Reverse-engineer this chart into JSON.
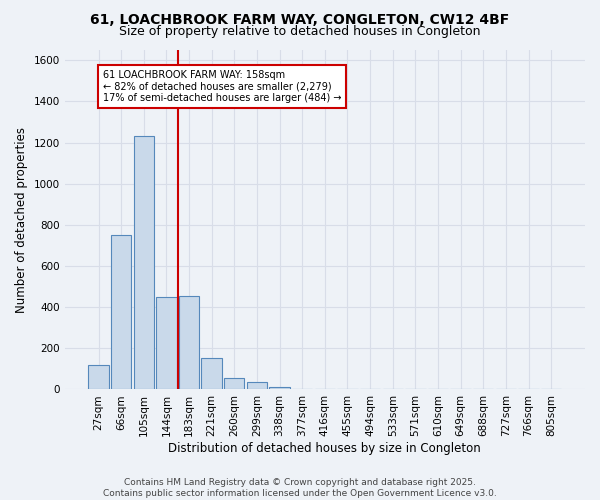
{
  "title1": "61, LOACHBROOK FARM WAY, CONGLETON, CW12 4BF",
  "title2": "Size of property relative to detached houses in Congleton",
  "xlabel": "Distribution of detached houses by size in Congleton",
  "ylabel": "Number of detached properties",
  "bar_labels": [
    "27sqm",
    "66sqm",
    "105sqm",
    "144sqm",
    "183sqm",
    "221sqm",
    "260sqm",
    "299sqm",
    "338sqm",
    "377sqm",
    "416sqm",
    "455sqm",
    "494sqm",
    "533sqm",
    "571sqm",
    "610sqm",
    "649sqm",
    "688sqm",
    "727sqm",
    "766sqm",
    "805sqm"
  ],
  "bar_values": [
    120,
    750,
    1230,
    450,
    455,
    155,
    55,
    35,
    10,
    0,
    0,
    0,
    0,
    0,
    0,
    0,
    0,
    0,
    0,
    0,
    0
  ],
  "bar_color": "#c9d9ea",
  "bar_edge_color": "#5588bb",
  "vline_x": 3.5,
  "vline_color": "#cc0000",
  "ylim": [
    0,
    1650
  ],
  "yticks": [
    0,
    200,
    400,
    600,
    800,
    1000,
    1200,
    1400,
    1600
  ],
  "annotation_text": "61 LOACHBROOK FARM WAY: 158sqm\n← 82% of detached houses are smaller (2,279)\n17% of semi-detached houses are larger (484) →",
  "annotation_box_color": "#ffffff",
  "annotation_box_edge": "#cc0000",
  "footer_text": "Contains HM Land Registry data © Crown copyright and database right 2025.\nContains public sector information licensed under the Open Government Licence v3.0.",
  "background_color": "#eef2f7",
  "grid_color": "#d8dde8",
  "title1_fontsize": 10,
  "title2_fontsize": 9,
  "xlabel_fontsize": 8.5,
  "ylabel_fontsize": 8.5,
  "tick_fontsize": 7.5,
  "footer_fontsize": 6.5,
  "annotation_fontsize": 7
}
